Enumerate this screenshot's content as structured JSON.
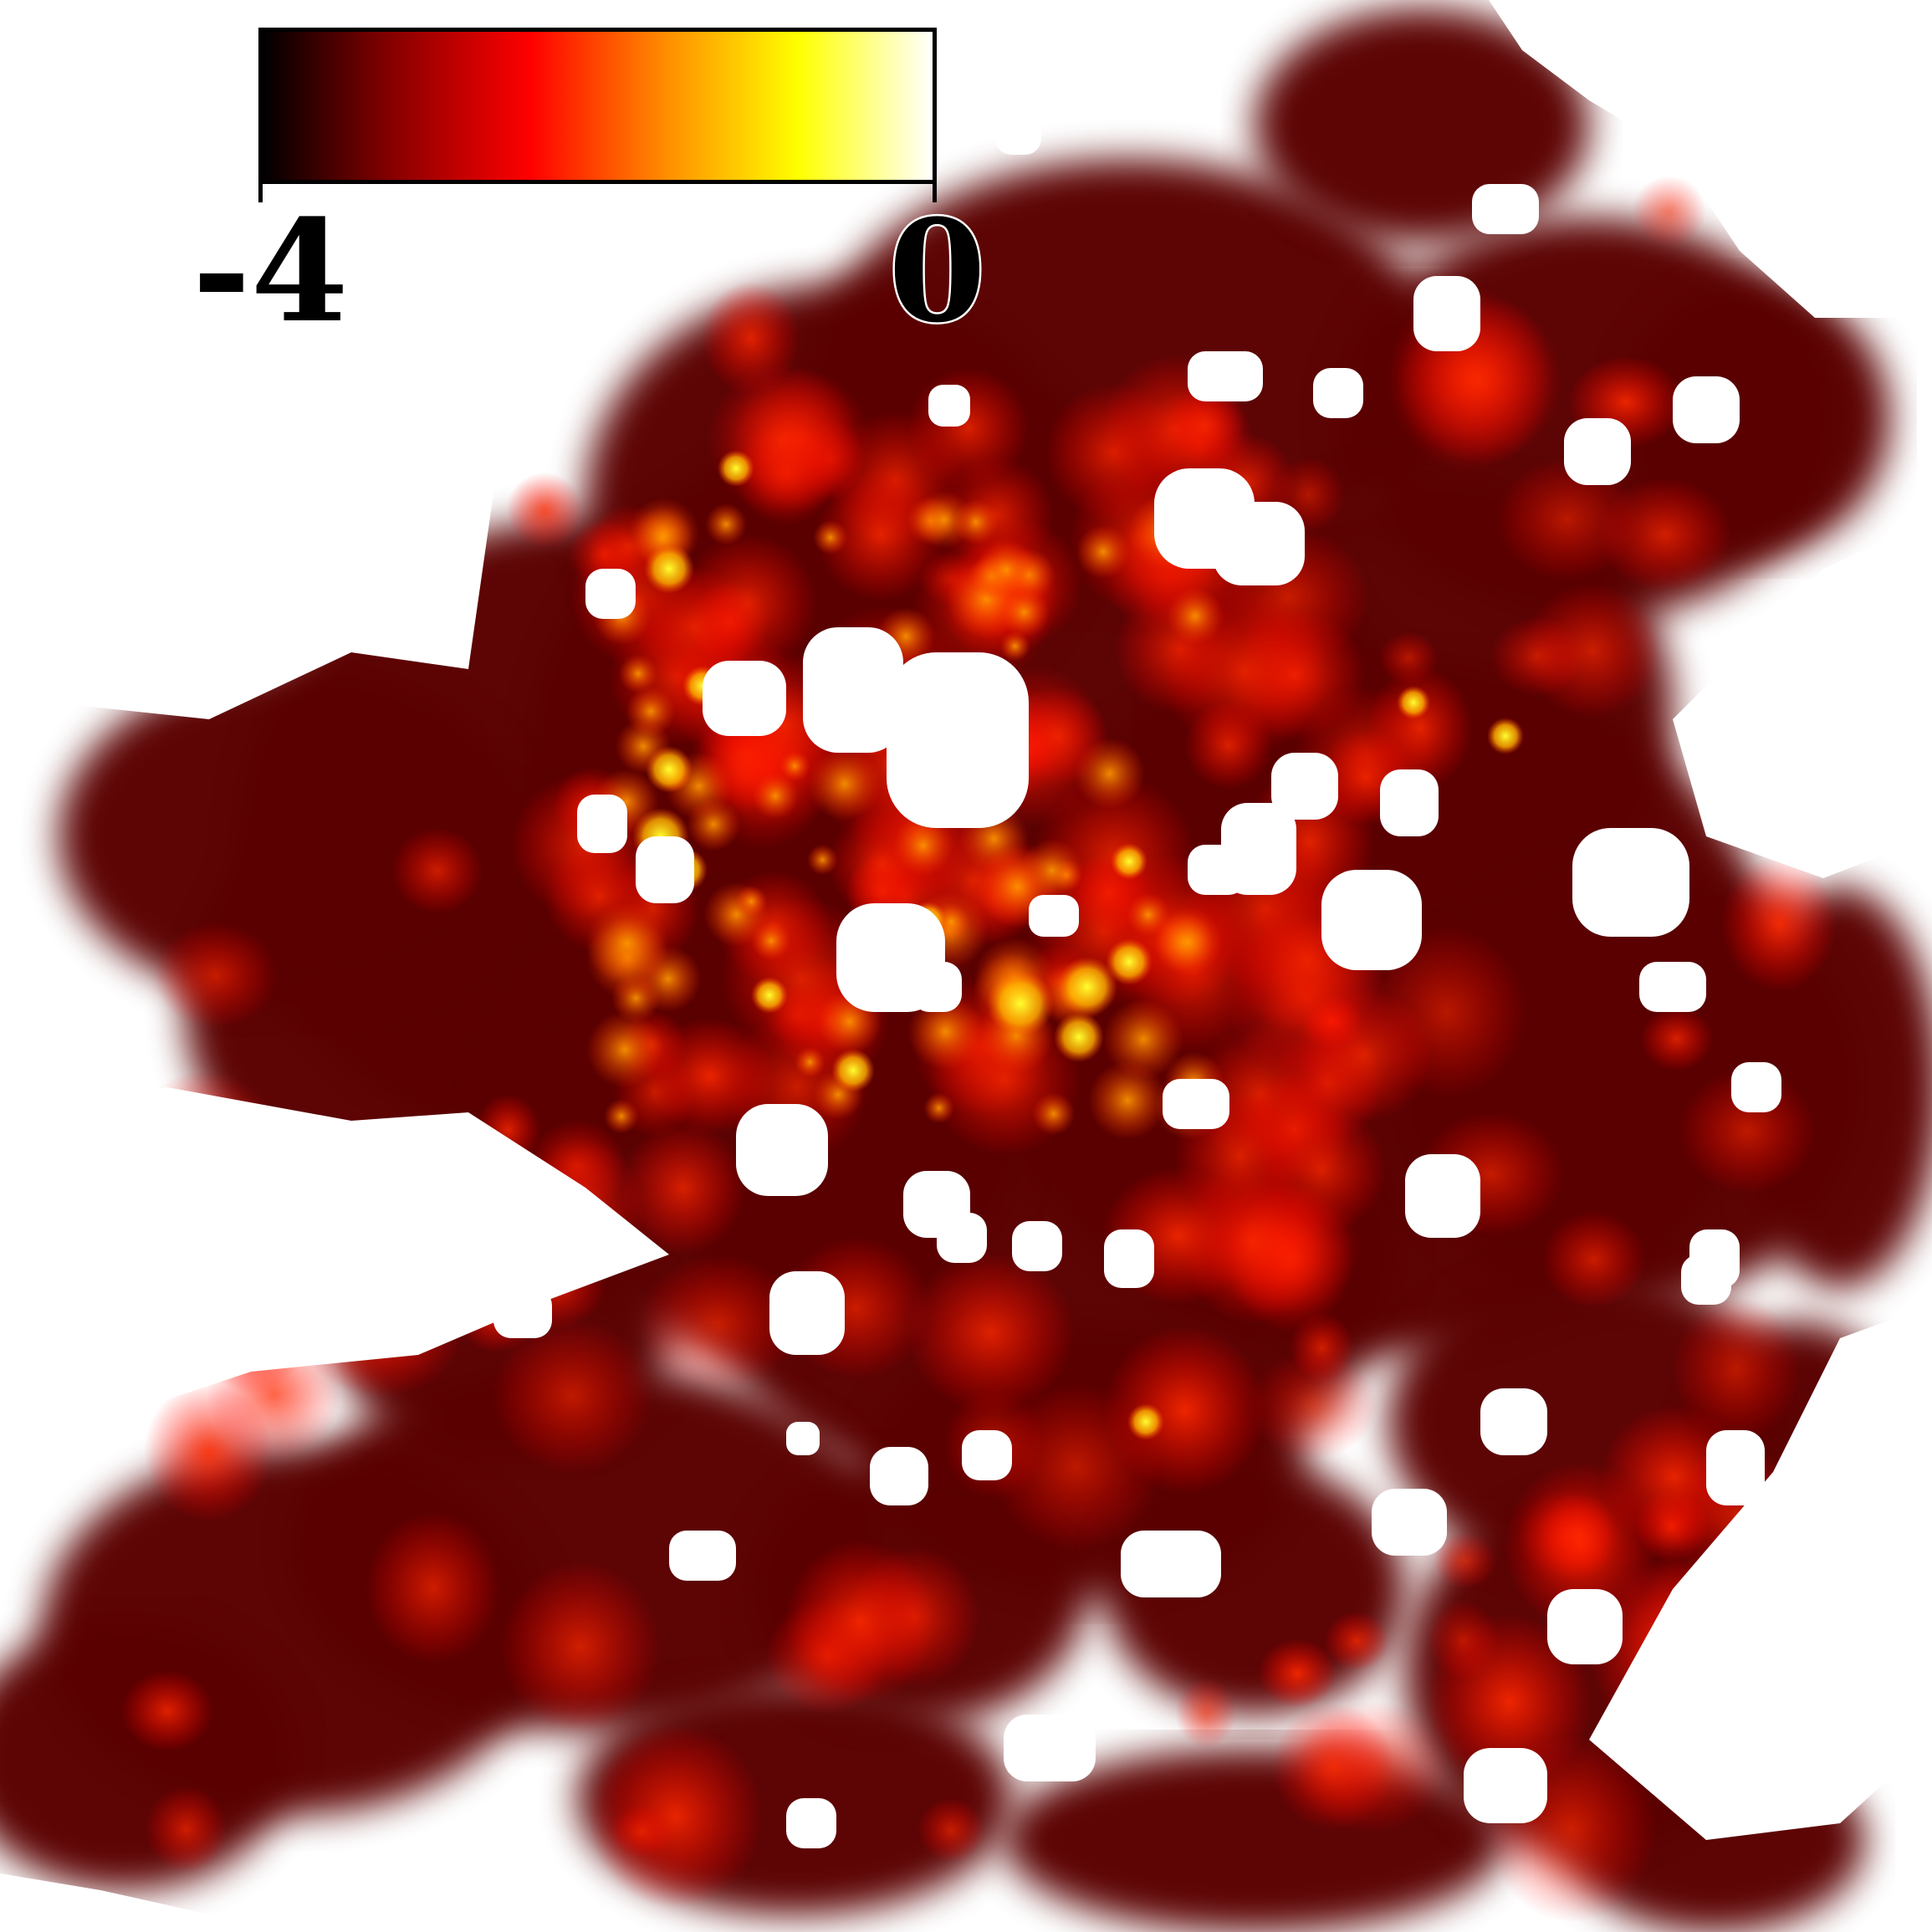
{
  "figure": {
    "type": "intensity-map",
    "colormap": {
      "name": "hot",
      "stops": [
        "#000000",
        "#8b0000",
        "#ff0000",
        "#ff8c00",
        "#ffff00",
        "#ffffff"
      ]
    },
    "background_color": "#ffffff",
    "colorbar": {
      "min_label": "-4",
      "max_label": "0",
      "min_value": -4,
      "max_value": 0,
      "orientation": "horizontal",
      "placement": "top-left"
    }
  }
}
